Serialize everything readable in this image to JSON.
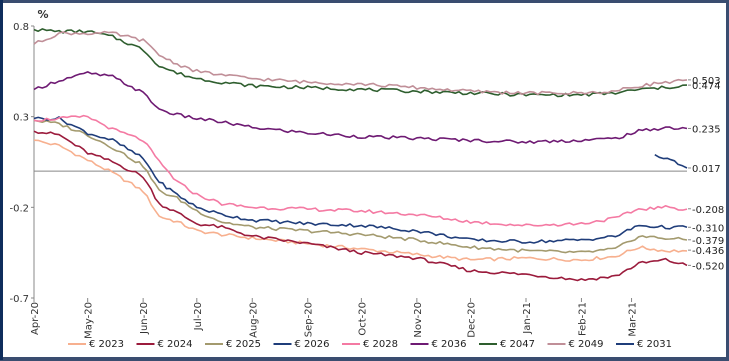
{
  "chart_data": {
    "type": "line",
    "ylabel": "%",
    "ylim": [
      -0.7,
      0.8
    ],
    "yticks": [
      0.8,
      0.3,
      -0.2,
      -0.7
    ],
    "xlim": [
      "2020-04-01",
      "2021-04-01"
    ],
    "x_ticks": [
      "Apr-20",
      "May-20",
      "Jun-20",
      "Jul-20",
      "Aug-20",
      "Sep-20",
      "Oct-20",
      "Nov-20",
      "Dec-20",
      "Jan-21",
      "Feb-21",
      "Mar-21"
    ],
    "x_tick_dates": [
      "2020-04-01",
      "2020-05-01",
      "2020-06-01",
      "2020-07-01",
      "2020-08-01",
      "2020-09-01",
      "2020-10-01",
      "2020-11-01",
      "2020-12-01",
      "2021-01-01",
      "2021-02-01",
      "2021-03-01"
    ],
    "legend_position": "bottom",
    "grid": false,
    "end_labels": [
      "0.503",
      "0.474",
      "0.235",
      "0.017",
      "-0.208",
      "-0.310",
      "-0.379",
      "-0.436",
      "-0.520"
    ],
    "end_label_values": [
      0.503,
      0.474,
      0.235,
      0.017,
      -0.208,
      -0.31,
      -0.379,
      -0.436,
      -0.52
    ],
    "series": [
      {
        "name": "€ 2023",
        "color": "#f7b08f",
        "x": [
          "2020-04-01",
          "2020-04-15",
          "2020-05-01",
          "2020-05-15",
          "2020-06-01",
          "2020-06-10",
          "2020-06-20",
          "2020-07-01",
          "2020-07-15",
          "2020-08-01",
          "2020-09-01",
          "2020-10-01",
          "2020-11-01",
          "2020-12-01",
          "2021-01-01",
          "2021-02-01",
          "2021-02-20",
          "2021-03-05",
          "2021-03-20",
          "2021-04-01"
        ],
        "values": [
          0.17,
          0.14,
          0.06,
          -0.01,
          -0.11,
          -0.25,
          -0.28,
          -0.33,
          -0.35,
          -0.37,
          -0.4,
          -0.43,
          -0.46,
          -0.49,
          -0.48,
          -0.49,
          -0.47,
          -0.42,
          -0.44,
          -0.44
        ]
      },
      {
        "name": "€ 2024",
        "color": "#9b1b3c",
        "x": [
          "2020-04-01",
          "2020-04-15",
          "2020-05-01",
          "2020-05-15",
          "2020-06-01",
          "2020-06-10",
          "2020-06-20",
          "2020-07-01",
          "2020-07-15",
          "2020-08-01",
          "2020-09-01",
          "2020-10-01",
          "2020-11-01",
          "2020-12-01",
          "2021-01-01",
          "2021-02-01",
          "2021-02-20",
          "2021-03-05",
          "2021-03-20",
          "2021-04-01"
        ],
        "values": [
          0.22,
          0.2,
          0.1,
          0.05,
          -0.03,
          -0.18,
          -0.23,
          -0.29,
          -0.31,
          -0.36,
          -0.4,
          -0.45,
          -0.48,
          -0.55,
          -0.57,
          -0.6,
          -0.58,
          -0.51,
          -0.49,
          -0.52
        ]
      },
      {
        "name": "€ 2025",
        "color": "#a39a6e",
        "x": [
          "2020-04-01",
          "2020-04-15",
          "2020-05-01",
          "2020-05-15",
          "2020-06-01",
          "2020-06-10",
          "2020-06-20",
          "2020-07-01",
          "2020-07-15",
          "2020-08-01",
          "2020-09-01",
          "2020-10-01",
          "2020-11-01",
          "2020-12-01",
          "2021-01-01",
          "2021-02-01",
          "2021-02-20",
          "2021-03-05",
          "2021-03-20",
          "2021-04-01"
        ],
        "values": [
          0.28,
          0.26,
          0.2,
          0.13,
          0.03,
          -0.11,
          -0.15,
          -0.22,
          -0.28,
          -0.31,
          -0.33,
          -0.35,
          -0.38,
          -0.42,
          -0.44,
          -0.45,
          -0.43,
          -0.36,
          -0.37,
          -0.38
        ]
      },
      {
        "name": "€ 2026",
        "color": "#1f3d7a",
        "x": [
          "2020-04-01",
          "2020-04-15",
          "2020-05-01",
          "2020-05-15",
          "2020-06-01",
          "2020-06-10",
          "2020-06-20",
          "2020-07-01",
          "2020-07-15",
          "2020-08-01",
          "2020-09-01",
          "2020-10-01",
          "2020-11-01",
          "2020-12-01",
          "2021-01-01",
          "2021-02-01",
          "2021-02-20",
          "2021-03-05",
          "2021-03-20",
          "2021-04-01"
        ],
        "values": [
          0.29,
          0.29,
          0.21,
          0.17,
          0.07,
          -0.06,
          -0.13,
          -0.2,
          -0.24,
          -0.27,
          -0.29,
          -0.3,
          -0.33,
          -0.38,
          -0.39,
          -0.38,
          -0.36,
          -0.3,
          -0.31,
          -0.31
        ]
      },
      {
        "name": "€ 2028",
        "color": "#f47aa3",
        "x": [
          "2020-04-01",
          "2020-04-15",
          "2020-05-01",
          "2020-05-15",
          "2020-06-01",
          "2020-06-10",
          "2020-06-20",
          "2020-07-01",
          "2020-07-15",
          "2020-08-01",
          "2020-09-01",
          "2020-10-01",
          "2020-11-01",
          "2020-12-01",
          "2021-01-01",
          "2021-02-01",
          "2021-02-20",
          "2021-03-05",
          "2021-03-20",
          "2021-04-01"
        ],
        "values": [
          0.28,
          0.29,
          0.3,
          0.23,
          0.17,
          0.05,
          -0.06,
          -0.13,
          -0.18,
          -0.2,
          -0.21,
          -0.22,
          -0.24,
          -0.28,
          -0.3,
          -0.29,
          -0.26,
          -0.21,
          -0.2,
          -0.21
        ]
      },
      {
        "name": "€ 2036",
        "color": "#6e1a73",
        "x": [
          "2020-04-01",
          "2020-04-15",
          "2020-05-01",
          "2020-05-15",
          "2020-06-01",
          "2020-06-10",
          "2020-06-20",
          "2020-07-01",
          "2020-07-15",
          "2020-08-01",
          "2020-09-01",
          "2020-10-01",
          "2020-11-01",
          "2020-12-01",
          "2021-01-01",
          "2021-02-01",
          "2021-02-20",
          "2021-03-05",
          "2021-03-20",
          "2021-04-01"
        ],
        "values": [
          0.45,
          0.5,
          0.54,
          0.52,
          0.43,
          0.34,
          0.31,
          0.29,
          0.27,
          0.24,
          0.21,
          0.19,
          0.18,
          0.17,
          0.16,
          0.17,
          0.18,
          0.22,
          0.24,
          0.235
        ]
      },
      {
        "name": "€ 2047",
        "color": "#2e5e2e",
        "x": [
          "2020-04-01",
          "2020-04-15",
          "2020-05-01",
          "2020-05-15",
          "2020-06-01",
          "2020-06-10",
          "2020-06-20",
          "2020-07-01",
          "2020-07-15",
          "2020-08-01",
          "2020-09-01",
          "2020-10-01",
          "2020-11-01",
          "2020-12-01",
          "2021-01-01",
          "2021-02-01",
          "2021-02-20",
          "2021-03-05",
          "2021-03-20",
          "2021-04-01"
        ],
        "values": [
          0.78,
          0.77,
          0.77,
          0.74,
          0.67,
          0.58,
          0.54,
          0.51,
          0.49,
          0.47,
          0.46,
          0.45,
          0.44,
          0.43,
          0.42,
          0.42,
          0.43,
          0.45,
          0.46,
          0.474
        ]
      },
      {
        "name": "€ 2049",
        "color": "#c08f98",
        "x": [
          "2020-04-01",
          "2020-04-15",
          "2020-05-01",
          "2020-05-15",
          "2020-06-01",
          "2020-06-10",
          "2020-06-20",
          "2020-07-01",
          "2020-07-15",
          "2020-08-01",
          "2020-09-01",
          "2020-10-01",
          "2020-11-01",
          "2020-12-01",
          "2021-01-01",
          "2021-02-01",
          "2021-02-20",
          "2021-03-05",
          "2021-03-20",
          "2021-04-01"
        ],
        "values": [
          0.7,
          0.76,
          0.76,
          0.76,
          0.72,
          0.64,
          0.59,
          0.55,
          0.53,
          0.51,
          0.49,
          0.48,
          0.46,
          0.44,
          0.43,
          0.43,
          0.44,
          0.47,
          0.49,
          0.503
        ]
      },
      {
        "name": "€ 2031",
        "color": "#1f3d7a",
        "x": [
          "2021-03-14",
          "2021-03-19",
          "2021-03-23",
          "2021-03-27",
          "2021-04-01"
        ],
        "values": [
          0.09,
          0.07,
          0.07,
          0.04,
          0.017
        ]
      }
    ]
  }
}
